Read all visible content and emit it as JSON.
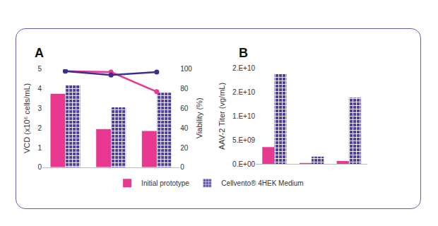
{
  "chart_data": [
    {
      "type": "bar",
      "title": "A",
      "categories": [
        null,
        null,
        null
      ],
      "y_label": "VCD (x10⁶ cells/mL)",
      "y2_label": "Viability (%)",
      "series": [
        {
          "name": "Initial prototype",
          "type": "bar",
          "color": "#e8388f",
          "marker": "solid",
          "values": [
            3.75,
            1.95,
            1.85
          ]
        },
        {
          "name": "Cellvento® 4HEK Medium",
          "type": "bar",
          "color": "#4d3e9e",
          "marker": "grid",
          "values": [
            4.2,
            3.05,
            3.8
          ]
        },
        {
          "name": "Initial prototype",
          "type": "line",
          "axis": "y2",
          "color": "#e8388f",
          "marker": "circle",
          "values": [
            98,
            97,
            77
          ]
        },
        {
          "name": "Cellvento® 4HEK Medium",
          "type": "line",
          "axis": "y2",
          "color": "#3d2f8f",
          "marker": "circle",
          "values": [
            98,
            94,
            97
          ]
        }
      ],
      "ylim": [
        0,
        5
      ],
      "yticks": [
        0,
        1,
        2,
        3,
        4,
        5
      ],
      "y2lim": [
        0,
        100
      ],
      "y2ticks": [
        0,
        20,
        40,
        60,
        80,
        100
      ],
      "grid": false,
      "legend": "bottom",
      "tick_labels": "y"
    },
    {
      "type": "bar",
      "title": "B",
      "categories": [
        null,
        null,
        null
      ],
      "y_label": "AAV-2 Titer (vg/mL)",
      "series": [
        {
          "name": "Initial prototype",
          "type": "bar",
          "color": "#e8388f",
          "marker": "solid",
          "values": [
            3500000000,
            200000000,
            600000000
          ]
        },
        {
          "name": "Cellvento® 4HEK Medium",
          "type": "bar",
          "color": "#4d3e9e",
          "marker": "grid",
          "values": [
            18800000000,
            1500000000,
            13900000000
          ]
        }
      ],
      "ylim": [
        0,
        20000000000
      ],
      "yticks": [
        {
          "value": 0,
          "label": "0.E+00"
        },
        {
          "value": 5000000000,
          "label": "5.E+09"
        },
        {
          "value": 10000000000,
          "label": "1.E+10"
        },
        {
          "value": 15000000000,
          "label": "2.E+10"
        },
        {
          "value": 20000000000,
          "label": "2.E+10"
        }
      ],
      "grid": false,
      "tick_labels": "y"
    }
  ]
}
